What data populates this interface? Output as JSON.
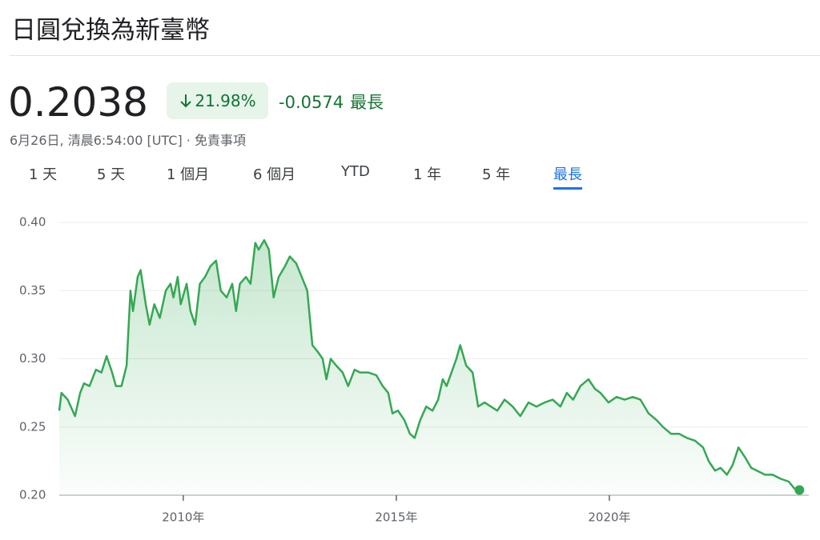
{
  "header": {
    "title": "日圓兌換為新臺幣",
    "price": "0.2038",
    "change_percent": "21.98%",
    "change": "-0.0574",
    "period": "最長",
    "timestamp": "6月26日, 清晨6:54:00 [UTC] · 免責事項"
  },
  "tabs": [
    "1 天",
    "5 天",
    "1 個月",
    "6 個月",
    "YTD",
    "1 年",
    "5 年",
    "最長"
  ],
  "selected_tab": 7,
  "chart_data": {
    "type": "area",
    "color": "#34a853",
    "x": [
      2007.09,
      2007.14,
      2007.29,
      2007.46,
      2007.58,
      2007.67,
      2007.8,
      2007.95,
      2008.08,
      2008.2,
      2008.33,
      2008.42,
      2008.55,
      2008.67,
      2008.76,
      2008.82,
      2008.93,
      2009.0,
      2009.12,
      2009.21,
      2009.32,
      2009.45,
      2009.59,
      2009.7,
      2009.77,
      2009.87,
      2009.94,
      2010.08,
      2010.17,
      2010.28,
      2010.39,
      2010.51,
      2010.64,
      2010.77,
      2010.88,
      2011.02,
      2011.15,
      2011.24,
      2011.33,
      2011.47,
      2011.58,
      2011.69,
      2011.77,
      2011.9,
      2012.01,
      2012.12,
      2012.24,
      2012.39,
      2012.5,
      2012.65,
      2012.78,
      2012.91,
      2013.03,
      2013.16,
      2013.27,
      2013.36,
      2013.46,
      2013.59,
      2013.74,
      2013.87,
      2014.02,
      2014.15,
      2014.34,
      2014.53,
      2014.68,
      2014.81,
      2014.91,
      2015.04,
      2015.19,
      2015.32,
      2015.43,
      2015.56,
      2015.7,
      2015.85,
      2015.98,
      2016.09,
      2016.18,
      2016.32,
      2016.41,
      2016.5,
      2016.64,
      2016.79,
      2016.92,
      2017.07,
      2017.22,
      2017.37,
      2017.54,
      2017.73,
      2017.91,
      2018.1,
      2018.29,
      2018.48,
      2018.67,
      2018.85,
      2019.0,
      2019.15,
      2019.32,
      2019.51,
      2019.66,
      2019.79,
      2019.98,
      2020.17,
      2020.36,
      2020.55,
      2020.73,
      2020.92,
      2021.11,
      2021.26,
      2021.45,
      2021.64,
      2021.82,
      2022.01,
      2022.2,
      2022.33,
      2022.48,
      2022.61,
      2022.76,
      2022.89,
      2023.03,
      2023.18,
      2023.33,
      2023.46,
      2023.65,
      2023.83,
      2024.02,
      2024.21,
      2024.34,
      2024.46
    ],
    "values": [
      0.262,
      0.275,
      0.27,
      0.258,
      0.275,
      0.282,
      0.28,
      0.292,
      0.29,
      0.302,
      0.29,
      0.28,
      0.28,
      0.295,
      0.35,
      0.335,
      0.36,
      0.365,
      0.34,
      0.325,
      0.34,
      0.33,
      0.35,
      0.355,
      0.345,
      0.36,
      0.34,
      0.355,
      0.335,
      0.325,
      0.355,
      0.36,
      0.368,
      0.372,
      0.35,
      0.345,
      0.355,
      0.335,
      0.355,
      0.36,
      0.355,
      0.385,
      0.38,
      0.387,
      0.38,
      0.345,
      0.36,
      0.368,
      0.375,
      0.37,
      0.36,
      0.35,
      0.31,
      0.305,
      0.3,
      0.285,
      0.3,
      0.295,
      0.29,
      0.28,
      0.292,
      0.29,
      0.29,
      0.288,
      0.28,
      0.275,
      0.26,
      0.262,
      0.255,
      0.245,
      0.242,
      0.255,
      0.265,
      0.262,
      0.27,
      0.285,
      0.28,
      0.292,
      0.3,
      0.31,
      0.295,
      0.29,
      0.265,
      0.268,
      0.265,
      0.262,
      0.27,
      0.265,
      0.258,
      0.268,
      0.265,
      0.268,
      0.27,
      0.265,
      0.275,
      0.27,
      0.28,
      0.285,
      0.278,
      0.275,
      0.268,
      0.272,
      0.27,
      0.272,
      0.27,
      0.26,
      0.255,
      0.25,
      0.245,
      0.245,
      0.242,
      0.24,
      0.235,
      0.225,
      0.218,
      0.22,
      0.215,
      0.222,
      0.235,
      0.228,
      0.22,
      0.218,
      0.215,
      0.215,
      0.212,
      0.21,
      0.205,
      0.2038
    ],
    "xlim": [
      2007.09,
      2024.68
    ],
    "xticks": [
      {
        "value": 2010,
        "label": "2010年"
      },
      {
        "value": 2015,
        "label": "2015年"
      },
      {
        "value": 2020,
        "label": "2020年"
      }
    ],
    "ylim": [
      0.2,
      0.4
    ],
    "yticks": [
      {
        "value": 0.2,
        "label": "0.20"
      },
      {
        "value": 0.25,
        "label": "0.25"
      },
      {
        "value": 0.3,
        "label": "0.30"
      },
      {
        "value": 0.35,
        "label": "0.35"
      },
      {
        "value": 0.4,
        "label": "0.40"
      }
    ],
    "grid": true
  }
}
